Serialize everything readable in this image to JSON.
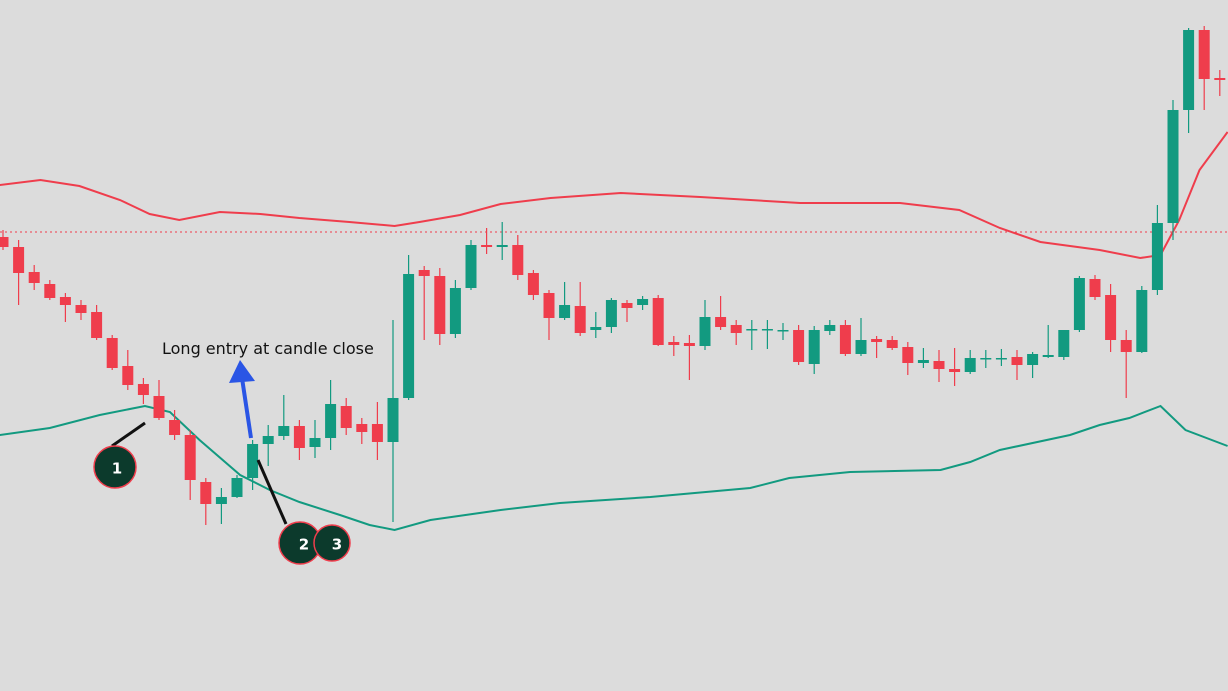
{
  "chart_data": {
    "type": "candlestick",
    "up_color": "#129a80",
    "down_color": "#ef3d4c",
    "ylim": [
      0,
      691
    ],
    "open": [
      454,
      444,
      419,
      407,
      394,
      386,
      379,
      353,
      325,
      307,
      295,
      271,
      256,
      209,
      187,
      194,
      213,
      247,
      255,
      265,
      244,
      253,
      285,
      267,
      267,
      249,
      293,
      421,
      415,
      357,
      403,
      446,
      444,
      446,
      418,
      398,
      373,
      385,
      361,
      364,
      388,
      386,
      393,
      349,
      348,
      345,
      374,
      366,
      362,
      362,
      361,
      361,
      327,
      360,
      366,
      337,
      352,
      351,
      344,
      328,
      330,
      322,
      319,
      333,
      333,
      334,
      326,
      334,
      334,
      361,
      412,
      396,
      351,
      339,
      401,
      468,
      581,
      661,
      613
    ],
    "high": [
      461,
      451,
      426,
      411,
      398,
      391,
      386,
      356,
      341,
      313,
      311,
      281,
      261,
      213,
      203,
      216,
      251,
      266,
      296,
      271,
      271,
      311,
      293,
      273,
      289,
      371,
      436,
      425,
      423,
      411,
      451,
      463,
      469,
      456,
      421,
      401,
      409,
      409,
      379,
      393,
      391,
      395,
      396,
      355,
      356,
      391,
      395,
      371,
      371,
      371,
      368,
      366,
      365,
      371,
      371,
      373,
      355,
      355,
      349,
      343,
      341,
      343,
      341,
      341,
      342,
      341,
      339,
      366,
      361,
      415,
      416,
      407,
      361,
      405,
      486,
      591,
      663,
      665,
      621
    ],
    "low": [
      441,
      386,
      401,
      391,
      369,
      371,
      351,
      321,
      301,
      287,
      271,
      251,
      191,
      166,
      167,
      193,
      201,
      225,
      251,
      231,
      233,
      241,
      256,
      247,
      231,
      169,
      291,
      351,
      346,
      353,
      401,
      437,
      431,
      411,
      391,
      351,
      371,
      355,
      353,
      358,
      369,
      381,
      345,
      335,
      311,
      341,
      361,
      346,
      341,
      342,
      351,
      326,
      317,
      356,
      335,
      335,
      333,
      341,
      316,
      323,
      309,
      305,
      317,
      323,
      325,
      311,
      313,
      333,
      331,
      359,
      391,
      339,
      293,
      338,
      396,
      451,
      558,
      581,
      595
    ],
    "close": [
      444,
      418,
      408,
      393,
      386,
      378,
      353,
      323,
      306,
      296,
      273,
      256,
      211,
      187,
      194,
      213,
      247,
      255,
      265,
      243,
      253,
      287,
      263,
      259,
      249,
      293,
      417,
      415,
      357,
      403,
      446,
      444,
      446,
      416,
      396,
      373,
      386,
      358,
      364,
      391,
      383,
      392,
      346,
      346,
      345,
      374,
      364,
      358,
      362,
      362,
      361,
      329,
      361,
      366,
      337,
      351,
      349,
      343,
      328,
      331,
      322,
      319,
      333,
      333,
      333,
      326,
      337,
      336,
      361,
      413,
      394,
      351,
      339,
      401,
      468,
      581,
      661,
      612,
      611
    ],
    "bands": [
      {
        "color": "#ef3d4c",
        "x": [
          -0.2,
          2.4,
          4.9,
          7.5,
          9.4,
          11.3,
          13.9,
          16.5,
          19,
          22.2,
          25.1,
          26.7,
          29.3,
          31.9,
          35.1,
          39.6,
          44.7,
          51.1,
          57.5,
          61.3,
          63.9,
          66.5,
          70.3,
          72.9,
          74.2,
          75.4,
          76.7,
          78.5
        ],
        "values": [
          506,
          511,
          505,
          491,
          477,
          471,
          479,
          477,
          473,
          469,
          465,
          469,
          476,
          487,
          493,
          498,
          494,
          488,
          488,
          481,
          463,
          449,
          441,
          433,
          436,
          471,
          521,
          559
        ]
      },
      {
        "color": "#129a80",
        "x": [
          -0.2,
          3,
          6.2,
          9.1,
          10.7,
          12.6,
          15.2,
          17.1,
          19,
          21.6,
          23.5,
          25.1,
          27.4,
          31.9,
          35.7,
          41.5,
          47.9,
          50.4,
          54.3,
          60.1,
          62,
          63.9,
          68.4,
          70.3,
          72.2,
          74.2,
          75.8,
          78.5
        ],
        "values": [
          256,
          263,
          276,
          285,
          279,
          251,
          216,
          201,
          189,
          176,
          166,
          161,
          171,
          181,
          188,
          194,
          203,
          213,
          219,
          221,
          229,
          241,
          256,
          266,
          273,
          285,
          261,
          245
        ]
      }
    ],
    "reference_line": {
      "value": 459,
      "color": "#ef3d4c"
    },
    "annotation": "Long entry at candle close",
    "markers": [
      "1",
      "2",
      "3"
    ]
  }
}
